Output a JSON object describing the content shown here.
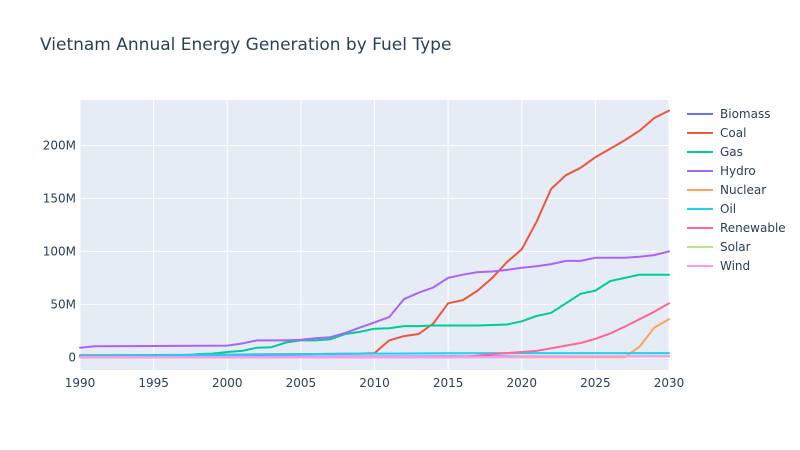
{
  "chart_data": {
    "type": "line",
    "title": "Vietnam Annual Energy Generation by Fuel Type",
    "xlabel": "",
    "ylabel": "",
    "xlim": [
      1990,
      2030
    ],
    "ylim": [
      -12000000,
      243000000
    ],
    "x_ticks": [
      1990,
      1995,
      2000,
      2005,
      2010,
      2015,
      2020,
      2025,
      2030
    ],
    "x_tick_labels": [
      "1990",
      "1995",
      "2000",
      "2005",
      "2010",
      "2015",
      "2020",
      "2025",
      "2030"
    ],
    "y_ticks": [
      0,
      50000000,
      100000000,
      150000000,
      200000000
    ],
    "y_tick_labels": [
      "0",
      "50M",
      "100M",
      "150M",
      "200M"
    ],
    "grid": true,
    "legend_position": "right",
    "background": "#e5ecf6",
    "series": [
      {
        "name": "Biomass",
        "color": "#636efa",
        "points": [
          [
            1990,
            500000
          ],
          [
            2000,
            600000
          ],
          [
            2010,
            700000
          ],
          [
            2020,
            900000
          ],
          [
            2030,
            1000000
          ]
        ]
      },
      {
        "name": "Coal",
        "color": "#EF553B",
        "points": [
          [
            1990,
            2000000
          ],
          [
            1995,
            2200000
          ],
          [
            2000,
            2500000
          ],
          [
            2005,
            3000000
          ],
          [
            2009,
            3500000
          ],
          [
            2010,
            4000000
          ],
          [
            2011,
            16000000
          ],
          [
            2012,
            20000000
          ],
          [
            2013,
            22000000
          ],
          [
            2014,
            32000000
          ],
          [
            2015,
            51000000
          ],
          [
            2016,
            54000000
          ],
          [
            2017,
            63000000
          ],
          [
            2018,
            75000000
          ],
          [
            2019,
            90000000
          ],
          [
            2020,
            102000000
          ],
          [
            2021,
            128000000
          ],
          [
            2022,
            159000000
          ],
          [
            2023,
            172000000
          ],
          [
            2024,
            179000000
          ],
          [
            2025,
            189000000
          ],
          [
            2026,
            197000000
          ],
          [
            2027,
            205000000
          ],
          [
            2028,
            214000000
          ],
          [
            2029,
            226000000
          ],
          [
            2030,
            233000000
          ]
        ]
      },
      {
        "name": "Gas",
        "color": "#00cc96",
        "points": [
          [
            1990,
            1000000
          ],
          [
            1995,
            1200000
          ],
          [
            1997,
            1500000
          ],
          [
            1998,
            3000000
          ],
          [
            1999,
            3500000
          ],
          [
            2000,
            5000000
          ],
          [
            2001,
            6000000
          ],
          [
            2002,
            9000000
          ],
          [
            2003,
            9500000
          ],
          [
            2004,
            14000000
          ],
          [
            2005,
            16000000
          ],
          [
            2006,
            16000000
          ],
          [
            2007,
            17000000
          ],
          [
            2008,
            22000000
          ],
          [
            2009,
            24000000
          ],
          [
            2010,
            27000000
          ],
          [
            2011,
            27500000
          ],
          [
            2012,
            29500000
          ],
          [
            2013,
            29500000
          ],
          [
            2014,
            30000000
          ],
          [
            2015,
            30000000
          ],
          [
            2016,
            30000000
          ],
          [
            2017,
            30000000
          ],
          [
            2018,
            30500000
          ],
          [
            2019,
            31000000
          ],
          [
            2020,
            34000000
          ],
          [
            2021,
            39000000
          ],
          [
            2022,
            42000000
          ],
          [
            2023,
            51000000
          ],
          [
            2024,
            60000000
          ],
          [
            2025,
            63000000
          ],
          [
            2026,
            72000000
          ],
          [
            2027,
            75000000
          ],
          [
            2028,
            78000000
          ],
          [
            2029,
            78000000
          ],
          [
            2030,
            78000000
          ]
        ]
      },
      {
        "name": "Hydro",
        "color": "#ab63fa",
        "points": [
          [
            1990,
            9000000
          ],
          [
            1991,
            10500000
          ],
          [
            1995,
            10700000
          ],
          [
            2000,
            11000000
          ],
          [
            2001,
            13000000
          ],
          [
            2002,
            16000000
          ],
          [
            2003,
            16000000
          ],
          [
            2004,
            16000000
          ],
          [
            2005,
            16500000
          ],
          [
            2006,
            18000000
          ],
          [
            2007,
            19000000
          ],
          [
            2008,
            23000000
          ],
          [
            2009,
            28000000
          ],
          [
            2010,
            33000000
          ],
          [
            2011,
            38000000
          ],
          [
            2012,
            55000000
          ],
          [
            2013,
            61000000
          ],
          [
            2014,
            66000000
          ],
          [
            2015,
            75000000
          ],
          [
            2016,
            78000000
          ],
          [
            2017,
            80500000
          ],
          [
            2018,
            81000000
          ],
          [
            2019,
            82500000
          ],
          [
            2020,
            84500000
          ],
          [
            2021,
            86000000
          ],
          [
            2022,
            88000000
          ],
          [
            2023,
            91000000
          ],
          [
            2024,
            91000000
          ],
          [
            2025,
            94000000
          ],
          [
            2026,
            94000000
          ],
          [
            2027,
            94000000
          ],
          [
            2028,
            95000000
          ],
          [
            2029,
            96500000
          ],
          [
            2030,
            100000000
          ]
        ]
      },
      {
        "name": "Nuclear",
        "color": "#FFA15A",
        "points": [
          [
            1990,
            0
          ],
          [
            2000,
            0
          ],
          [
            2010,
            0
          ],
          [
            2020,
            0
          ],
          [
            2027,
            0
          ],
          [
            2028,
            10000000
          ],
          [
            2029,
            28000000
          ],
          [
            2030,
            36000000
          ]
        ]
      },
      {
        "name": "Oil",
        "color": "#19d3f3",
        "points": [
          [
            1990,
            1500000
          ],
          [
            1995,
            2000000
          ],
          [
            2000,
            2500000
          ],
          [
            2005,
            3000000
          ],
          [
            2010,
            3500000
          ],
          [
            2015,
            3800000
          ],
          [
            2020,
            4000000
          ],
          [
            2025,
            4000000
          ],
          [
            2030,
            4000000
          ]
        ]
      },
      {
        "name": "Renewable",
        "color": "#FF6692",
        "points": [
          [
            1990,
            0
          ],
          [
            2000,
            0
          ],
          [
            2010,
            0
          ],
          [
            2015,
            0
          ],
          [
            2016,
            500000
          ],
          [
            2017,
            1500000
          ],
          [
            2018,
            3000000
          ],
          [
            2019,
            4000000
          ],
          [
            2020,
            5000000
          ],
          [
            2021,
            6000000
          ],
          [
            2022,
            8500000
          ],
          [
            2023,
            11000000
          ],
          [
            2024,
            13500000
          ],
          [
            2025,
            17500000
          ],
          [
            2026,
            22500000
          ],
          [
            2027,
            29000000
          ],
          [
            2028,
            36000000
          ],
          [
            2029,
            43000000
          ],
          [
            2030,
            51000000
          ]
        ]
      },
      {
        "name": "Solar",
        "color": "#B6E880",
        "points": [
          [
            1990,
            0
          ],
          [
            2000,
            0
          ],
          [
            2010,
            0
          ],
          [
            2018,
            0
          ],
          [
            2019,
            300000
          ],
          [
            2020,
            1000000
          ],
          [
            2025,
            1200000
          ],
          [
            2030,
            1500000
          ]
        ]
      },
      {
        "name": "Wind",
        "color": "#FF97FF",
        "points": [
          [
            1990,
            0
          ],
          [
            2000,
            0
          ],
          [
            2010,
            0
          ],
          [
            2015,
            0
          ],
          [
            2020,
            500000
          ],
          [
            2025,
            800000
          ],
          [
            2030,
            1000000
          ]
        ]
      }
    ]
  }
}
